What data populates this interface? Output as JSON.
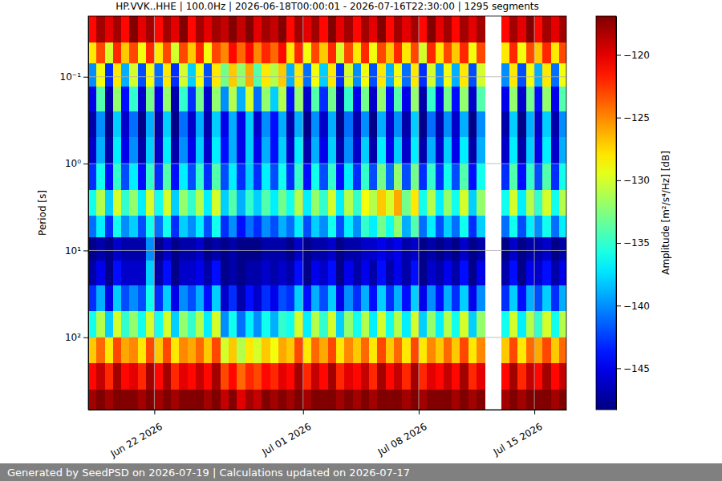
{
  "chart_data": {
    "type": "heatmap",
    "title": "HP.VVK..HHE | 100.0Hz | 2026-06-18T00:00:01 - 2026-07-16T22:30:00 | 1295 segments",
    "y_label": "Period [s]",
    "footer": "Generated by SeedPSD on 2026-07-19 | Calculations updated on 2026-07-17",
    "log": "y",
    "grid": true,
    "color": "jet",
    "xlim": [
      "2026-06-18T00:00:01",
      "2026-07-16T22:30:00"
    ],
    "xticks": [
      {
        "value": "2026-06-22T00:00:00",
        "label": "Jun 22 2026"
      },
      {
        "value": "2026-07-01T00:00:00",
        "label": "Jul 01 2026"
      },
      {
        "value": "2026-07-08T00:00:00",
        "label": "Jul 08 2026"
      },
      {
        "value": "2026-07-15T00:00:00",
        "label": "Jul 15 2026"
      }
    ],
    "ylim": [
      0.02,
      680
    ],
    "yticks": [
      {
        "value": 0.1,
        "label": "10⁻¹"
      },
      {
        "value": 1,
        "label": "10⁰"
      },
      {
        "value": 10,
        "label": "10¹"
      },
      {
        "value": 100,
        "label": "10²"
      }
    ],
    "colorbar_label": "Amplitude [m²/s⁴/Hz] [dB]",
    "colorbar_lim": [
      -148.3,
      -116.9
    ],
    "colorbar_ticks": [
      {
        "value": -145,
        "label": "−145"
      },
      {
        "value": -140,
        "label": "−140"
      },
      {
        "value": -135,
        "label": "−135"
      },
      {
        "value": -130,
        "label": "−130"
      },
      {
        "value": -125,
        "label": "−125"
      },
      {
        "value": -120,
        "label": "−120"
      }
    ],
    "x_bins": [
      "2026-06-18T00:00:00",
      "2026-06-18T12:00:00",
      "2026-06-19T00:00:00",
      "2026-06-19T12:00:00",
      "2026-06-20T00:00:00",
      "2026-06-20T12:00:00",
      "2026-06-21T00:00:00",
      "2026-06-21T12:00:00",
      "2026-06-22T00:00:00",
      "2026-06-22T12:00:00",
      "2026-06-23T00:00:00",
      "2026-06-23T12:00:00",
      "2026-06-24T00:00:00",
      "2026-06-24T12:00:00",
      "2026-06-25T00:00:00",
      "2026-06-25T12:00:00",
      "2026-06-26T00:00:00",
      "2026-06-26T12:00:00",
      "2026-06-27T00:00:00",
      "2026-06-27T12:00:00",
      "2026-06-28T00:00:00",
      "2026-06-28T12:00:00",
      "2026-06-29T00:00:00",
      "2026-06-29T12:00:00",
      "2026-06-30T00:00:00",
      "2026-06-30T12:00:00",
      "2026-07-01T00:00:00",
      "2026-07-01T12:00:00",
      "2026-07-02T00:00:00",
      "2026-07-02T12:00:00",
      "2026-07-03T00:00:00",
      "2026-07-03T12:00:00",
      "2026-07-04T00:00:00",
      "2026-07-04T12:00:00",
      "2026-07-05T00:00:00",
      "2026-07-05T12:00:00",
      "2026-07-06T00:00:00",
      "2026-07-06T12:00:00",
      "2026-07-07T00:00:00",
      "2026-07-07T12:00:00",
      "2026-07-08T00:00:00",
      "2026-07-08T12:00:00",
      "2026-07-09T00:00:00",
      "2026-07-09T12:00:00",
      "2026-07-10T00:00:00",
      "2026-07-10T12:00:00",
      "2026-07-11T00:00:00",
      "2026-07-11T12:00:00",
      "2026-07-12T00:00:00",
      "2026-07-12T12:00:00",
      "2026-07-13T00:00:00",
      "2026-07-13T12:00:00",
      "2026-07-14T00:00:00",
      "2026-07-14T12:00:00",
      "2026-07-15T00:00:00",
      "2026-07-15T12:00:00",
      "2026-07-16T00:00:00",
      "2026-07-16T12:00:00",
      "2026-07-17T00:00:00"
    ],
    "y_bins": [
      0.02,
      0.04,
      0.07,
      0.13,
      0.25,
      0.5,
      1,
      2,
      4,
      7,
      13,
      25,
      50,
      100,
      200,
      400,
      700
    ],
    "values": [
      [
        -121,
        -118,
        -120,
        -118,
        -121,
        -117,
        -120,
        -118,
        -121,
        -118,
        -120,
        -117,
        -121,
        -118,
        -120,
        -118,
        -119,
        -117,
        -119,
        -117,
        -120,
        -118,
        -119,
        -117,
        -121,
        -118,
        -120,
        -118,
        -121,
        -117,
        -120,
        -118,
        -121,
        -118,
        -120,
        -117,
        -121,
        -118,
        -120,
        -118,
        -121,
        -117,
        -120,
        -118,
        -121,
        -118,
        -120,
        -118,
        null,
        null,
        -121,
        -118,
        -120,
        -117,
        -121,
        -118,
        -120,
        -118
      ],
      [
        -128,
        -123,
        -130,
        -122,
        -127,
        -123,
        -129,
        -122,
        -128,
        -123,
        -130,
        -123,
        -127,
        -122,
        -129,
        -123,
        -125,
        -121,
        -124,
        -121,
        -125,
        -122,
        -124,
        -121,
        -128,
        -122,
        -129,
        -123,
        -127,
        -122,
        -130,
        -123,
        -128,
        -122,
        -129,
        -123,
        -127,
        -122,
        -128,
        -123,
        -130,
        -122,
        -128,
        -123,
        -127,
        -122,
        -129,
        -123,
        null,
        null,
        -128,
        -122,
        -129,
        -123,
        -127,
        -122,
        -128,
        -123
      ],
      [
        -140,
        -129,
        -143,
        -128,
        -139,
        -130,
        -142,
        -129,
        -141,
        -128,
        -143,
        -130,
        -138,
        -129,
        -142,
        -128,
        -133,
        -127,
        -132,
        -126,
        -134,
        -128,
        -131,
        -127,
        -139,
        -128,
        -141,
        -129,
        -138,
        -128,
        -143,
        -130,
        -140,
        -129,
        -142,
        -128,
        -139,
        -129,
        -141,
        -128,
        -143,
        -130,
        -140,
        -129,
        -139,
        -128,
        -142,
        -130,
        null,
        null,
        -140,
        -128,
        -142,
        -129,
        -139,
        -128,
        -141,
        -129
      ],
      [
        -145,
        -134,
        -147,
        -132,
        -144,
        -135,
        -146,
        -133,
        -145,
        -132,
        -147,
        -135,
        -143,
        -133,
        -146,
        -132,
        -140,
        -131,
        -139,
        -130,
        -141,
        -132,
        -138,
        -131,
        -144,
        -132,
        -146,
        -134,
        -143,
        -133,
        -147,
        -135,
        -145,
        -133,
        -146,
        -132,
        -144,
        -134,
        -145,
        -132,
        -147,
        -135,
        -145,
        -133,
        -144,
        -132,
        -146,
        -134,
        null,
        null,
        -145,
        -132,
        -146,
        -133,
        -144,
        -132,
        -145,
        -134
      ],
      [
        -147,
        -140,
        -148,
        -138,
        -146,
        -141,
        -148,
        -139,
        -147,
        -138,
        -148,
        -141,
        -146,
        -139,
        -147,
        -138,
        -145,
        -139,
        -145,
        -138,
        -146,
        -140,
        -144,
        -139,
        -147,
        -139,
        -148,
        -140,
        -146,
        -139,
        -148,
        -141,
        -147,
        -140,
        -148,
        -139,
        -146,
        -140,
        -147,
        -138,
        -148,
        -141,
        -147,
        -140,
        -146,
        -139,
        -148,
        -140,
        null,
        null,
        -147,
        -138,
        -148,
        -139,
        -146,
        -138,
        -147,
        -140
      ],
      [
        -146,
        -139,
        -147,
        -137,
        -145,
        -140,
        -147,
        -138,
        -146,
        -137,
        -147,
        -140,
        -145,
        -138,
        -146,
        -137,
        -144,
        -139,
        -145,
        -138,
        -145,
        -139,
        -144,
        -138,
        -146,
        -137,
        -147,
        -139,
        -145,
        -138,
        -147,
        -140,
        -146,
        -138,
        -147,
        -137,
        -145,
        -138,
        -146,
        -137,
        -147,
        -139,
        -146,
        -138,
        -145,
        -137,
        -147,
        -139,
        null,
        null,
        -146,
        -137,
        -147,
        -138,
        -145,
        -137,
        -146,
        -139
      ],
      [
        -143,
        -136,
        -144,
        -135,
        -142,
        -137,
        -144,
        -135,
        -143,
        -134,
        -144,
        -137,
        -142,
        -135,
        -143,
        -134,
        -142,
        -137,
        -143,
        -138,
        -143,
        -137,
        -142,
        -136,
        -143,
        -135,
        -144,
        -136,
        -142,
        -135,
        -144,
        -137,
        -143,
        -135,
        -142,
        -133,
        -141,
        -132,
        -142,
        -133,
        -143,
        -135,
        -143,
        -136,
        -142,
        -134,
        -144,
        -136,
        null,
        null,
        -143,
        -134,
        -144,
        -135,
        -142,
        -134,
        -143,
        -136
      ],
      [
        -136,
        -131,
        -138,
        -130,
        -135,
        -132,
        -137,
        -130,
        -136,
        -130,
        -138,
        -132,
        -135,
        -131,
        -137,
        -130,
        -138,
        -134,
        -139,
        -135,
        -138,
        -134,
        -137,
        -133,
        -136,
        -131,
        -137,
        -132,
        -135,
        -130,
        -137,
        -131,
        -135,
        -129,
        -131,
        -127,
        -130,
        -126,
        -133,
        -128,
        -136,
        -131,
        -137,
        -132,
        -136,
        -130,
        -138,
        -132,
        null,
        null,
        -136,
        -130,
        -137,
        -131,
        -135,
        -130,
        -136,
        -131
      ],
      [
        -141,
        -137,
        -143,
        -136,
        -140,
        -138,
        -142,
        -136,
        -141,
        -136,
        -143,
        -138,
        -140,
        -137,
        -142,
        -136,
        -143,
        -140,
        -144,
        -141,
        -143,
        -140,
        -142,
        -139,
        -141,
        -137,
        -142,
        -138,
        -140,
        -136,
        -142,
        -137,
        -140,
        -135,
        -137,
        -133,
        -136,
        -132,
        -139,
        -134,
        -141,
        -137,
        -142,
        -138,
        -141,
        -136,
        -143,
        -138,
        null,
        null,
        -141,
        -136,
        -142,
        -137,
        -140,
        -136,
        -141,
        -137
      ],
      [
        -148,
        -147,
        -148,
        -146,
        -147,
        -147,
        -147,
        -140,
        -148,
        -146,
        -148,
        -147,
        -147,
        -146,
        -148,
        -147,
        -148,
        -147,
        -148,
        -148,
        -148,
        -147,
        -147,
        -147,
        -148,
        -146,
        -148,
        -147,
        -147,
        -146,
        -148,
        -147,
        -147,
        -146,
        -146,
        -145,
        -146,
        -145,
        -147,
        -146,
        -148,
        -147,
        -148,
        -147,
        -148,
        -146,
        -148,
        -147,
        null,
        null,
        -148,
        -146,
        -148,
        -147,
        -147,
        -146,
        -148,
        -147
      ],
      [
        -147,
        -145,
        -148,
        -144,
        -146,
        -146,
        -146,
        -138,
        -147,
        -144,
        -148,
        -146,
        -146,
        -145,
        -147,
        -144,
        -148,
        -147,
        -148,
        -147,
        -147,
        -146,
        -147,
        -146,
        -147,
        -144,
        -148,
        -145,
        -146,
        -144,
        -148,
        -145,
        -147,
        -145,
        -147,
        -144,
        -147,
        -145,
        -147,
        -144,
        -148,
        -146,
        -147,
        -145,
        -147,
        -144,
        -148,
        -145,
        null,
        null,
        -147,
        -144,
        -148,
        -145,
        -146,
        -144,
        -147,
        -145
      ],
      [
        -143,
        -139,
        -145,
        -138,
        -142,
        -140,
        -142,
        -136,
        -143,
        -138,
        -145,
        -140,
        -142,
        -139,
        -144,
        -138,
        -146,
        -143,
        -147,
        -144,
        -146,
        -143,
        -145,
        -142,
        -143,
        -138,
        -144,
        -139,
        -142,
        -138,
        -145,
        -140,
        -143,
        -139,
        -144,
        -138,
        -143,
        -139,
        -144,
        -138,
        -145,
        -140,
        -144,
        -139,
        -143,
        -138,
        -145,
        -140,
        null,
        null,
        -143,
        -138,
        -144,
        -139,
        -142,
        -138,
        -143,
        -139
      ],
      [
        -136,
        -131,
        -138,
        -130,
        -135,
        -132,
        -136,
        -130,
        -136,
        -130,
        -138,
        -132,
        -135,
        -131,
        -137,
        -130,
        -140,
        -136,
        -141,
        -137,
        -140,
        -136,
        -139,
        -135,
        -136,
        -130,
        -137,
        -131,
        -135,
        -130,
        -138,
        -132,
        -136,
        -131,
        -137,
        -130,
        -136,
        -131,
        -137,
        -130,
        -138,
        -132,
        -137,
        -131,
        -136,
        -130,
        -138,
        -132,
        null,
        null,
        -136,
        -130,
        -137,
        -131,
        -135,
        -130,
        -136,
        -131
      ],
      [
        -127,
        -124,
        -128,
        -123,
        -126,
        -125,
        -128,
        -123,
        -127,
        -123,
        -128,
        -125,
        -126,
        -124,
        -127,
        -123,
        -130,
        -127,
        -131,
        -128,
        -130,
        -127,
        -129,
        -126,
        -127,
        -123,
        -128,
        -124,
        -126,
        -123,
        -128,
        -125,
        -127,
        -124,
        -128,
        -123,
        -127,
        -124,
        -128,
        -123,
        -128,
        -125,
        -127,
        -124,
        -127,
        -123,
        -128,
        -125,
        null,
        null,
        -127,
        -123,
        -128,
        -124,
        -126,
        -123,
        -127,
        -124
      ],
      [
        -121,
        -119,
        -122,
        -118,
        -121,
        -120,
        -122,
        -118,
        -121,
        -118,
        -122,
        -120,
        -121,
        -119,
        -121,
        -118,
        -123,
        -121,
        -124,
        -122,
        -123,
        -121,
        -122,
        -120,
        -121,
        -118,
        -122,
        -119,
        -121,
        -118,
        -122,
        -120,
        -121,
        -119,
        -122,
        -118,
        -121,
        -119,
        -122,
        -118,
        -122,
        -120,
        -121,
        -119,
        -121,
        -118,
        -122,
        -120,
        null,
        null,
        -121,
        -118,
        -122,
        -119,
        -121,
        -118,
        -121,
        -119
      ],
      [
        -118,
        -116,
        -118,
        -116,
        -117,
        -117,
        -118,
        -116,
        -118,
        -116,
        -118,
        -117,
        -117,
        -116,
        -118,
        -116,
        -119,
        -117,
        -120,
        -118,
        -119,
        -117,
        -118,
        -117,
        -118,
        -116,
        -118,
        -116,
        -117,
        -116,
        -118,
        -117,
        -118,
        -116,
        -118,
        -116,
        -117,
        -116,
        -118,
        -116,
        -118,
        -117,
        -117,
        -116,
        -118,
        -116,
        -118,
        -117,
        null,
        null,
        -118,
        -116,
        -118,
        -116,
        -117,
        -116,
        -118,
        -116
      ]
    ]
  }
}
